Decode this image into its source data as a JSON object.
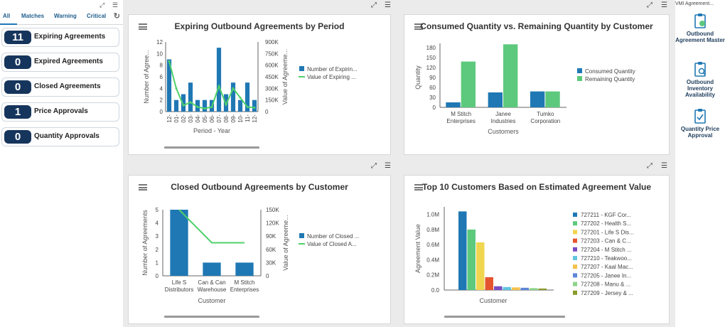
{
  "tabs": {
    "all": "All",
    "matches": "Matches",
    "warning": "Warning",
    "critical": "Critical"
  },
  "kpis": [
    {
      "count": "11",
      "label": "Expiring Agreements"
    },
    {
      "count": "0",
      "label": "Expired Agreements"
    },
    {
      "count": "0",
      "label": "Closed Agreements"
    },
    {
      "count": "1",
      "label": "Price Approvals"
    },
    {
      "count": "0",
      "label": "Quantity Approvals"
    }
  ],
  "right_panel": {
    "title": "VMI Agreement...",
    "items": [
      {
        "label": "Outbound Agreement Master"
      },
      {
        "label": "Outbound Inventory Availability"
      },
      {
        "label": "Quantity Price Approval"
      }
    ]
  },
  "chart_data": [
    {
      "type": "bar",
      "title": "Expiring Outbound Agreements by Period",
      "xlabel": "Period - Year",
      "ylabel": "Number of Agree...",
      "y2label": "Value of Agreeme...",
      "categories": [
        "12-",
        "01-",
        "02-",
        "03-",
        "04-",
        "05-",
        "06-",
        "07-",
        "08-",
        "09-",
        "10-",
        "11-",
        "12-"
      ],
      "series": [
        {
          "name": "Number of Expirin...",
          "type": "bar",
          "values": [
            9,
            2,
            3,
            5,
            2,
            2,
            2,
            11,
            3,
            5,
            2,
            5,
            2
          ]
        },
        {
          "name": "Value of Expiring ...",
          "type": "line",
          "values": [
            650000,
            300000,
            80000,
            120000,
            60000,
            40000,
            60000,
            330000,
            90000,
            300000,
            180000,
            60000,
            50000
          ]
        }
      ],
      "yticks": [
        "0",
        "2",
        "4",
        "6",
        "8",
        "10",
        "12"
      ],
      "y2ticks": [
        "0",
        "150K",
        "300K",
        "450K",
        "600K",
        "750K",
        "900K"
      ],
      "ylim": [
        0,
        12
      ],
      "y2lim": [
        0,
        900000
      ]
    },
    {
      "type": "bar",
      "title": "Consumed Quantity vs. Remaining Quantity by Customer",
      "xlabel": "Customers",
      "ylabel": "Quantity",
      "categories": [
        "M Stitch Enterprises",
        "Janee Industries",
        "Tumko Corporation"
      ],
      "category_lines": [
        [
          "M Stitch",
          "Enterprises"
        ],
        [
          "Janee",
          "Industries"
        ],
        [
          "Tumko",
          "Corporation"
        ]
      ],
      "series": [
        {
          "name": "Consumed Quantity",
          "values": [
            15,
            45,
            48
          ]
        },
        {
          "name": "Remaining Quantity",
          "values": [
            138,
            190,
            48
          ]
        }
      ],
      "yticks": [
        "0",
        "30",
        "60",
        "90",
        "120",
        "150",
        "180"
      ],
      "ylim": [
        0,
        200
      ]
    },
    {
      "type": "bar",
      "title": "Closed Outbound Agreements by Customer",
      "xlabel": "Customer",
      "ylabel": "Number of Agreements",
      "y2label": "Value of Agreeme...",
      "categories": [
        "Life S Distributors",
        "Can & Can Warehouse",
        "M Stitch Enterprises"
      ],
      "category_lines": [
        [
          "Life S",
          "Distributors"
        ],
        [
          "Can & Can",
          "Warehouse"
        ],
        [
          "M Stitch",
          "Enterprises"
        ]
      ],
      "series": [
        {
          "name": "Number of Closed ...",
          "type": "bar",
          "values": [
            5,
            1,
            1
          ]
        },
        {
          "name": "Value of Closed A...",
          "type": "line",
          "values": [
            150000,
            75000,
            75000
          ]
        }
      ],
      "yticks": [
        "0",
        "1",
        "2",
        "3",
        "4",
        "5"
      ],
      "y2ticks": [
        "0",
        "30K",
        "60K",
        "90K",
        "120K",
        "150K"
      ],
      "ylim": [
        0,
        5
      ],
      "y2lim": [
        0,
        150000
      ]
    },
    {
      "type": "bar",
      "title": "Top 10 Customers Based on Estimated Agreement Value",
      "xlabel": "Customer",
      "ylabel": "Agreement Value",
      "categories": [
        "727211 - KGF Cor...",
        "727202 - Health S...",
        "727201 - Life S Dis...",
        "727203 - Can & C...",
        "727204 - M Stitch ...",
        "727210 - Teakwoo...",
        "727207 - Kaal Mac...",
        "727205 - Janee In...",
        "727208 - Manu & ...",
        "727209 - Jersey & ..."
      ],
      "values": [
        1040000,
        800000,
        630000,
        170000,
        50000,
        40000,
        35000,
        30000,
        25000,
        20000
      ],
      "yticks": [
        "0.0",
        "0.2M",
        "0.4M",
        "0.6M",
        "0.8M",
        "1.0M"
      ],
      "ylim": [
        0,
        1100000
      ]
    }
  ],
  "colors": {
    "blue": "#1f78b4",
    "green": "#5cc97c",
    "line": "#4fd06a",
    "navy": "#16355c",
    "palette": [
      "#1f78b4",
      "#5cc97c",
      "#f0d54e",
      "#e4552f",
      "#7a4bc4",
      "#62c6df",
      "#f4c14a",
      "#5c86d6",
      "#8cd48a",
      "#8a9a2b"
    ]
  }
}
